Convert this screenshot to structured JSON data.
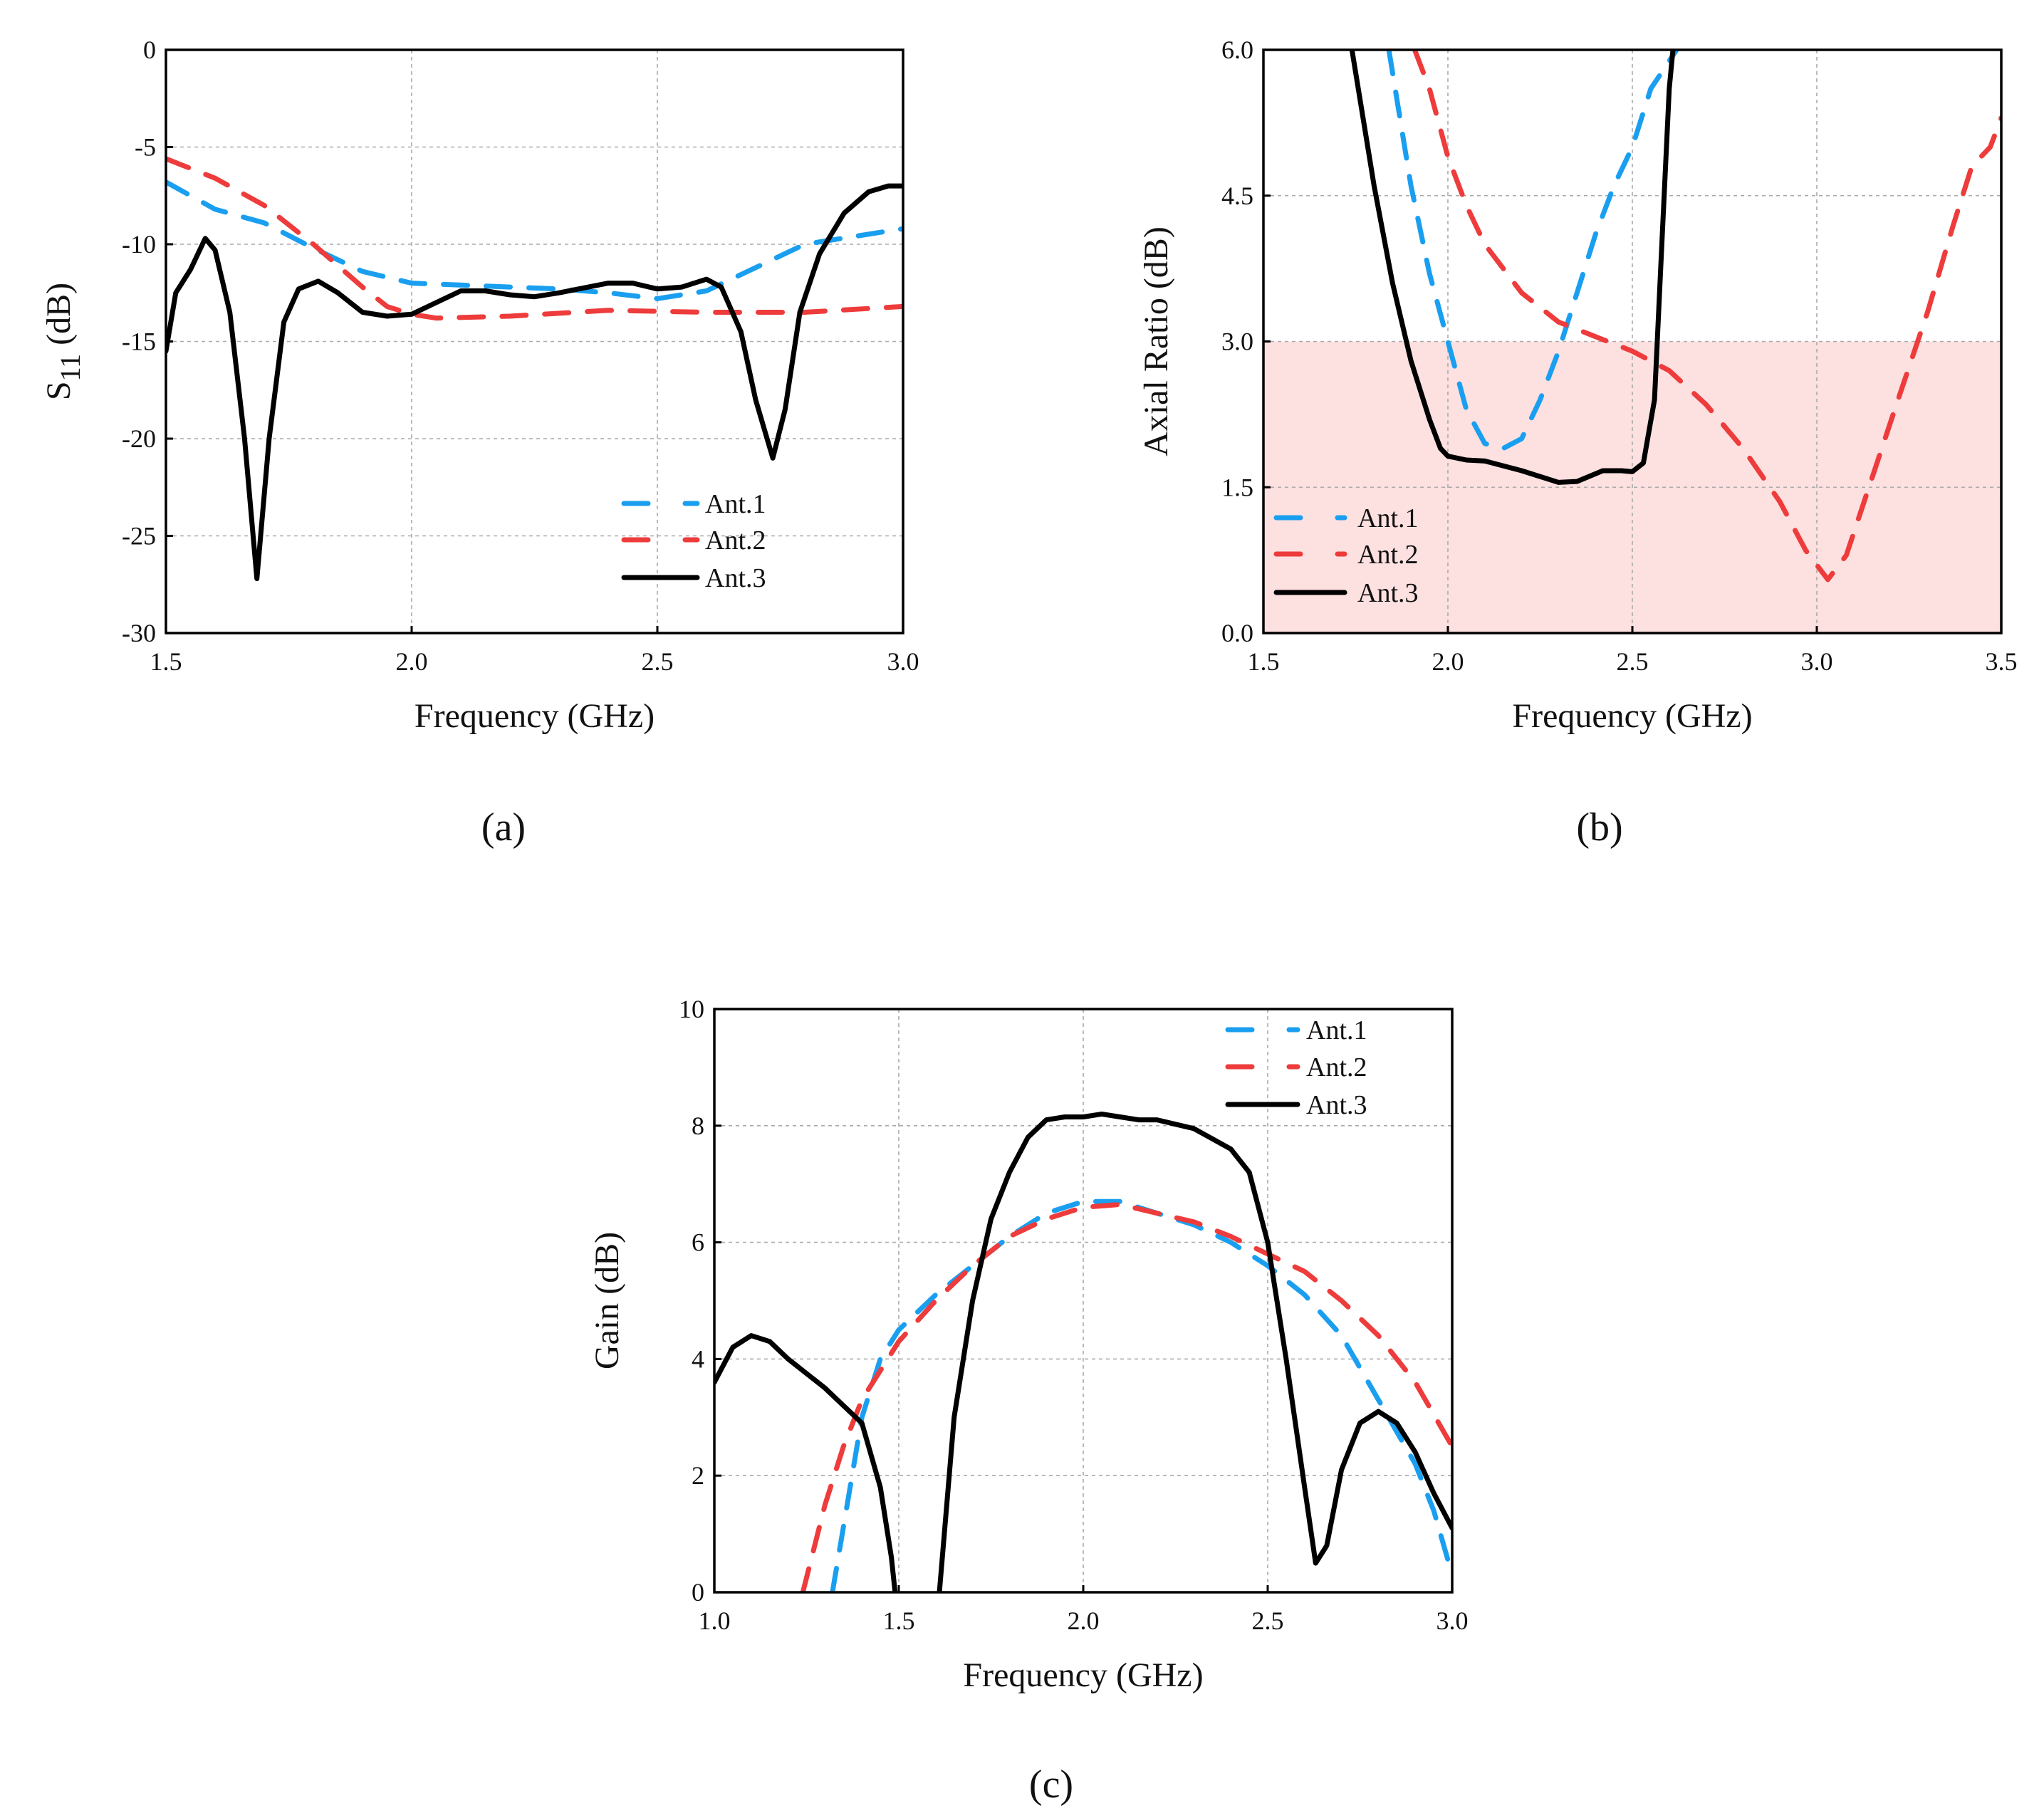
{
  "chart_data": [
    {
      "id": "a",
      "type": "line",
      "caption": "(a)",
      "xlabel": "Frequency (GHz)",
      "ylabel": "S11 (dB)",
      "ylabel_subscript": "11",
      "xlim": [
        1.5,
        3.0
      ],
      "ylim": [
        -30,
        0
      ],
      "xticks": [
        1.5,
        2.0,
        2.5,
        3.0
      ],
      "xtick_labels": [
        "1.5",
        "2.0",
        "2.5",
        "3.0"
      ],
      "yticks": [
        0,
        -5,
        -10,
        -15,
        -20,
        -25,
        -30
      ],
      "ytick_labels": [
        "0",
        "-5",
        "-10",
        "-15",
        "-20",
        "-25",
        "-30"
      ],
      "grid": true,
      "legend": "bottom-right",
      "series": [
        {
          "name": "Ant.1",
          "color": "#1a9ff0",
          "style": "dashed",
          "segments": [
            [
              [
                1.5,
                -6.8
              ],
              [
                1.6,
                -8.2
              ],
              [
                1.7,
                -8.9
              ],
              [
                1.8,
                -10.2
              ],
              [
                1.9,
                -11.4
              ],
              [
                2.0,
                -12.0
              ],
              [
                2.1,
                -12.1
              ],
              [
                2.2,
                -12.2
              ],
              [
                2.3,
                -12.3
              ],
              [
                2.4,
                -12.5
              ],
              [
                2.5,
                -12.8
              ],
              [
                2.6,
                -12.4
              ],
              [
                2.7,
                -11.2
              ],
              [
                2.8,
                -10.0
              ],
              [
                2.9,
                -9.6
              ],
              [
                3.0,
                -9.2
              ]
            ]
          ]
        },
        {
          "name": "Ant.2",
          "color": "#ee3b3b",
          "style": "dashed",
          "segments": [
            [
              [
                1.5,
                -5.6
              ],
              [
                1.6,
                -6.6
              ],
              [
                1.7,
                -8.0
              ],
              [
                1.8,
                -10.0
              ],
              [
                1.9,
                -12.2
              ],
              [
                1.95,
                -13.2
              ],
              [
                2.0,
                -13.6
              ],
              [
                2.05,
                -13.8
              ],
              [
                2.2,
                -13.7
              ],
              [
                2.4,
                -13.4
              ],
              [
                2.6,
                -13.5
              ],
              [
                2.8,
                -13.5
              ],
              [
                3.0,
                -13.2
              ]
            ]
          ]
        },
        {
          "name": "Ant.3",
          "color": "#000000",
          "style": "solid",
          "segments": [
            [
              [
                1.5,
                -15.5
              ],
              [
                1.52,
                -12.5
              ],
              [
                1.55,
                -11.3
              ],
              [
                1.58,
                -9.7
              ],
              [
                1.6,
                -10.3
              ],
              [
                1.63,
                -13.5
              ],
              [
                1.66,
                -20
              ],
              [
                1.685,
                -27.2
              ],
              [
                1.71,
                -20
              ],
              [
                1.74,
                -14
              ],
              [
                1.77,
                -12.3
              ],
              [
                1.81,
                -11.9
              ],
              [
                1.85,
                -12.5
              ],
              [
                1.9,
                -13.5
              ],
              [
                1.95,
                -13.7
              ],
              [
                2.0,
                -13.6
              ],
              [
                2.05,
                -13.0
              ],
              [
                2.1,
                -12.4
              ],
              [
                2.15,
                -12.4
              ],
              [
                2.2,
                -12.6
              ],
              [
                2.25,
                -12.7
              ],
              [
                2.3,
                -12.5
              ],
              [
                2.4,
                -12.0
              ],
              [
                2.45,
                -12.0
              ],
              [
                2.5,
                -12.3
              ],
              [
                2.55,
                -12.2
              ],
              [
                2.6,
                -11.8
              ],
              [
                2.63,
                -12.2
              ],
              [
                2.67,
                -14.5
              ],
              [
                2.7,
                -18.0
              ],
              [
                2.735,
                -21.0
              ],
              [
                2.76,
                -18.5
              ],
              [
                2.79,
                -13.5
              ],
              [
                2.83,
                -10.5
              ],
              [
                2.88,
                -8.4
              ],
              [
                2.93,
                -7.3
              ],
              [
                2.97,
                -7.0
              ],
              [
                3.0,
                -7.0
              ]
            ]
          ]
        }
      ]
    },
    {
      "id": "b",
      "type": "line",
      "caption": "(b)",
      "xlabel": "Frequency (GHz)",
      "ylabel": "Axial Ratio (dB)",
      "xlim": [
        1.5,
        3.5
      ],
      "ylim": [
        0,
        6
      ],
      "xticks": [
        1.5,
        2.0,
        2.5,
        3.0,
        3.5
      ],
      "xtick_labels": [
        "1.5",
        "2.0",
        "2.5",
        "3.0",
        "3.5"
      ],
      "yticks": [
        0,
        1.5,
        3.0,
        4.5,
        6.0
      ],
      "ytick_labels": [
        "0.0",
        "1.5",
        "3.0",
        "4.5",
        "6.0"
      ],
      "grid": true,
      "legend": "bottom-left",
      "shaded_band": {
        "y_from": 0,
        "y_to": 3,
        "color": "#fde0e0"
      },
      "series": [
        {
          "name": "Ant.1",
          "color": "#1a9ff0",
          "style": "dashed",
          "segments": [
            [
              [
                1.84,
                6.0
              ],
              [
                1.9,
                4.6
              ],
              [
                1.95,
                3.7
              ],
              [
                2.0,
                3.0
              ],
              [
                2.05,
                2.3
              ],
              [
                2.1,
                1.95
              ],
              [
                2.15,
                1.9
              ],
              [
                2.2,
                2.0
              ],
              [
                2.25,
                2.4
              ],
              [
                2.3,
                2.9
              ],
              [
                2.35,
                3.5
              ],
              [
                2.4,
                4.1
              ],
              [
                2.45,
                4.6
              ],
              [
                2.5,
                5.0
              ],
              [
                2.55,
                5.6
              ],
              [
                2.62,
                6.0
              ]
            ]
          ]
        },
        {
          "name": "Ant.2",
          "color": "#ee3b3b",
          "style": "dashed",
          "segments": [
            [
              [
                1.91,
                6.0
              ],
              [
                1.95,
                5.6
              ],
              [
                2.0,
                4.9
              ],
              [
                2.05,
                4.4
              ],
              [
                2.1,
                4.0
              ],
              [
                2.2,
                3.5
              ],
              [
                2.3,
                3.2
              ],
              [
                2.4,
                3.05
              ],
              [
                2.5,
                2.9
              ],
              [
                2.6,
                2.7
              ],
              [
                2.7,
                2.35
              ],
              [
                2.8,
                1.9
              ],
              [
                2.9,
                1.35
              ],
              [
                2.97,
                0.85
              ],
              [
                3.03,
                0.55
              ],
              [
                3.08,
                0.8
              ],
              [
                3.15,
                1.6
              ],
              [
                3.22,
                2.4
              ],
              [
                3.3,
                3.3
              ],
              [
                3.37,
                4.2
              ],
              [
                3.42,
                4.8
              ],
              [
                3.47,
                5.0
              ],
              [
                3.5,
                5.3
              ]
            ]
          ]
        },
        {
          "name": "Ant.3",
          "color": "#000000",
          "style": "solid",
          "segments": [
            [
              [
                1.74,
                6.0
              ],
              [
                1.8,
                4.6
              ],
              [
                1.85,
                3.6
              ],
              [
                1.9,
                2.8
              ],
              [
                1.95,
                2.2
              ],
              [
                1.98,
                1.9
              ],
              [
                2.0,
                1.82
              ],
              [
                2.05,
                1.78
              ],
              [
                2.1,
                1.77
              ],
              [
                2.2,
                1.67
              ],
              [
                2.3,
                1.55
              ],
              [
                2.35,
                1.56
              ],
              [
                2.42,
                1.67
              ],
              [
                2.47,
                1.67
              ],
              [
                2.5,
                1.66
              ],
              [
                2.53,
                1.75
              ],
              [
                2.56,
                2.4
              ],
              [
                2.58,
                4.0
              ],
              [
                2.6,
                5.6
              ],
              [
                2.61,
                6.0
              ]
            ]
          ]
        }
      ]
    },
    {
      "id": "c",
      "type": "line",
      "caption": "(c)",
      "xlabel": "Frequency (GHz)",
      "ylabel": "Gain (dB)",
      "xlim": [
        1.0,
        3.0
      ],
      "ylim": [
        0,
        10
      ],
      "xticks": [
        1.0,
        1.5,
        2.0,
        2.5,
        3.0
      ],
      "xtick_labels": [
        "1.0",
        "1.5",
        "2.0",
        "2.5",
        "3.0"
      ],
      "yticks": [
        0,
        2,
        4,
        6,
        8,
        10
      ],
      "ytick_labels": [
        "0",
        "2",
        "4",
        "6",
        "8",
        "10"
      ],
      "grid": true,
      "legend": "top-right",
      "series": [
        {
          "name": "Ant.1",
          "color": "#1a9ff0",
          "style": "dashed",
          "segments": [
            [
              [
                1.32,
                0
              ],
              [
                1.36,
                1.5
              ],
              [
                1.4,
                3.0
              ],
              [
                1.45,
                4.0
              ],
              [
                1.5,
                4.5
              ],
              [
                1.6,
                5.1
              ],
              [
                1.7,
                5.6
              ],
              [
                1.8,
                6.1
              ],
              [
                1.9,
                6.5
              ],
              [
                2.0,
                6.7
              ],
              [
                2.1,
                6.7
              ],
              [
                2.2,
                6.5
              ],
              [
                2.3,
                6.3
              ],
              [
                2.4,
                6.0
              ],
              [
                2.5,
                5.6
              ],
              [
                2.6,
                5.1
              ],
              [
                2.7,
                4.4
              ],
              [
                2.8,
                3.3
              ],
              [
                2.9,
                2.2
              ],
              [
                2.95,
                1.4
              ],
              [
                3.0,
                0.3
              ]
            ]
          ]
        },
        {
          "name": "Ant.2",
          "color": "#ee3b3b",
          "style": "dashed",
          "segments": [
            [
              [
                1.24,
                0
              ],
              [
                1.3,
                1.5
              ],
              [
                1.35,
                2.5
              ],
              [
                1.4,
                3.3
              ],
              [
                1.5,
                4.3
              ],
              [
                1.6,
                5.0
              ],
              [
                1.7,
                5.6
              ],
              [
                1.8,
                6.1
              ],
              [
                1.9,
                6.4
              ],
              [
                2.0,
                6.6
              ],
              [
                2.1,
                6.65
              ],
              [
                2.2,
                6.5
              ],
              [
                2.3,
                6.35
              ],
              [
                2.4,
                6.1
              ],
              [
                2.5,
                5.8
              ],
              [
                2.6,
                5.5
              ],
              [
                2.7,
                5.0
              ],
              [
                2.8,
                4.4
              ],
              [
                2.9,
                3.6
              ],
              [
                3.0,
                2.5
              ]
            ]
          ]
        },
        {
          "name": "Ant.3",
          "color": "#000000",
          "style": "solid",
          "segments": [
            [
              [
                1.0,
                3.6
              ],
              [
                1.05,
                4.2
              ],
              [
                1.1,
                4.4
              ],
              [
                1.15,
                4.3
              ],
              [
                1.2,
                4.0
              ],
              [
                1.3,
                3.5
              ],
              [
                1.4,
                2.9
              ],
              [
                1.45,
                1.8
              ],
              [
                1.48,
                0.6
              ],
              [
                1.49,
                0
              ]
            ],
            [
              [
                1.61,
                0
              ],
              [
                1.65,
                3.0
              ],
              [
                1.7,
                5.0
              ],
              [
                1.75,
                6.4
              ],
              [
                1.8,
                7.2
              ],
              [
                1.85,
                7.8
              ],
              [
                1.9,
                8.1
              ],
              [
                1.95,
                8.15
              ],
              [
                2.0,
                8.15
              ],
              [
                2.05,
                8.2
              ],
              [
                2.1,
                8.15
              ],
              [
                2.15,
                8.1
              ],
              [
                2.2,
                8.1
              ],
              [
                2.3,
                7.95
              ],
              [
                2.4,
                7.6
              ],
              [
                2.45,
                7.2
              ],
              [
                2.5,
                6.0
              ],
              [
                2.55,
                4.0
              ],
              [
                2.6,
                1.8
              ],
              [
                2.63,
                0.5
              ],
              [
                2.66,
                0.8
              ],
              [
                2.7,
                2.1
              ],
              [
                2.75,
                2.9
              ],
              [
                2.8,
                3.1
              ],
              [
                2.85,
                2.9
              ],
              [
                2.9,
                2.4
              ],
              [
                2.95,
                1.7
              ],
              [
                3.0,
                1.1
              ]
            ]
          ]
        }
      ]
    }
  ]
}
